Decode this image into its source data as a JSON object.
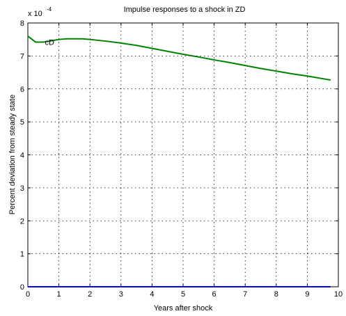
{
  "chart_data": {
    "type": "line",
    "title": "Impulse responses to a shock in ZD",
    "xlabel": "Years after shock",
    "ylabel": "Percent deviation from steady state",
    "scale_label": "x 10",
    "scale_exponent": "-4",
    "xlim": [
      0,
      10
    ],
    "ylim": [
      0,
      8
    ],
    "xticks": [
      "0",
      "1",
      "2",
      "3",
      "4",
      "5",
      "6",
      "7",
      "8",
      "9",
      "10"
    ],
    "yticks": [
      "0",
      "1",
      "2",
      "3",
      "4",
      "5",
      "6",
      "7",
      "8"
    ],
    "grid": true,
    "series": [
      {
        "name": "cD",
        "color": "#008000",
        "x": [
          0,
          0.25,
          0.5,
          0.75,
          1.0,
          1.25,
          1.5,
          1.75,
          2.0,
          2.5,
          3.0,
          3.5,
          4.0,
          4.5,
          5.0,
          5.5,
          6.0,
          6.5,
          7.0,
          7.5,
          8.0,
          8.5,
          9.0,
          9.5,
          9.75
        ],
        "y": [
          7.6,
          7.42,
          7.42,
          7.46,
          7.5,
          7.52,
          7.52,
          7.52,
          7.5,
          7.45,
          7.39,
          7.32,
          7.23,
          7.14,
          7.05,
          6.97,
          6.88,
          6.8,
          6.71,
          6.62,
          6.54,
          6.46,
          6.39,
          6.31,
          6.27
        ]
      },
      {
        "name": "",
        "color": "#0000ff",
        "x": [
          0,
          9.75
        ],
        "y": [
          0,
          0
        ]
      }
    ],
    "annotations": [
      {
        "text": "cD",
        "x": 0.55,
        "y": 7.42
      }
    ]
  }
}
